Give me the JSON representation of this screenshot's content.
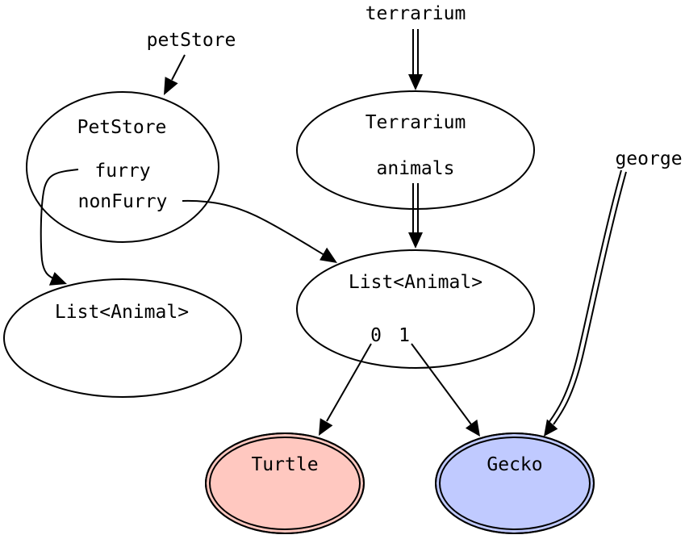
{
  "variables": {
    "pet_store": "petStore",
    "terrarium": "terrarium",
    "george": "george"
  },
  "nodes": {
    "pet_store": {
      "title": "PetStore",
      "fields": [
        "furry",
        "nonFurry"
      ]
    },
    "terrarium": {
      "title": "Terrarium",
      "fields": [
        "animals"
      ]
    },
    "list_right": {
      "title": "List<Animal>",
      "indices": [
        "0",
        "1"
      ]
    },
    "list_left": {
      "title": "List<Animal>"
    },
    "turtle": {
      "title": "Turtle",
      "fill": "#ffc8c0"
    },
    "gecko": {
      "title": "Gecko",
      "fill": "#c0caff"
    }
  }
}
